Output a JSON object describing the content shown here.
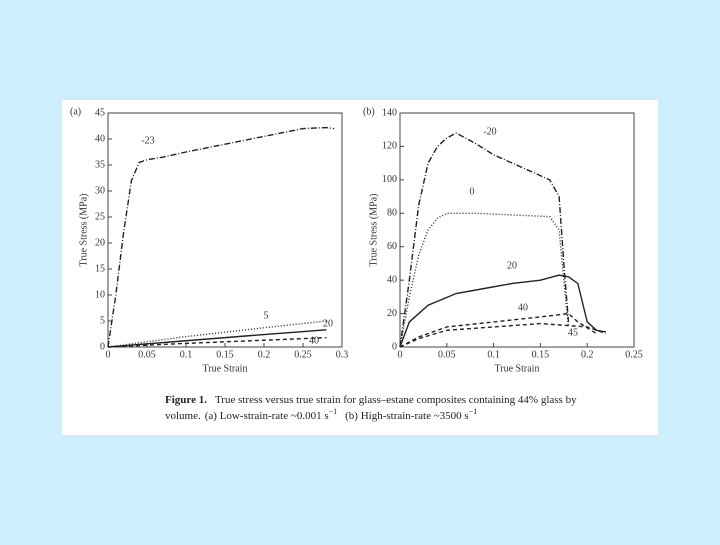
{
  "chart_data": [
    {
      "type": "line",
      "panel": "(a)",
      "xlabel": "True Strain",
      "ylabel": "True Stress (MPa)",
      "xlim": [
        0,
        0.3
      ],
      "xticks": [
        0,
        0.05,
        0.1,
        0.15,
        0.2,
        0.25,
        0.3
      ],
      "ylim": [
        0,
        45
      ],
      "yticks": [
        0,
        5,
        10,
        15,
        20,
        25,
        30,
        35,
        40,
        45
      ],
      "series": [
        {
          "name": "-23",
          "color": "#222222",
          "dash": "dashdot",
          "x": [
            0,
            0.01,
            0.02,
            0.03,
            0.04,
            0.05,
            0.07,
            0.1,
            0.15,
            0.2,
            0.25,
            0.28,
            0.29
          ],
          "values": [
            0,
            10,
            22,
            32,
            35.5,
            36,
            36.5,
            37.5,
            39,
            40.5,
            42,
            42.2,
            42
          ]
        },
        {
          "name": "5",
          "color": "#222222",
          "dash": "dotted",
          "x": [
            0,
            0.1,
            0.2,
            0.28
          ],
          "values": [
            0,
            2,
            3.7,
            5
          ]
        },
        {
          "name": "20",
          "color": "#222222",
          "dash": "solid",
          "x": [
            0,
            0.1,
            0.2,
            0.28
          ],
          "values": [
            0,
            1.2,
            2.4,
            3.3
          ]
        },
        {
          "name": "40",
          "color": "#222222",
          "dash": "dashed",
          "x": [
            0,
            0.1,
            0.2,
            0.28
          ],
          "values": [
            0,
            0.7,
            1.3,
            1.8
          ]
        }
      ]
    },
    {
      "type": "line",
      "panel": "(b)",
      "xlabel": "True Strain",
      "ylabel": "True Stress (MPa)",
      "xlim": [
        0,
        0.25
      ],
      "xticks": [
        0,
        0.05,
        0.1,
        0.15,
        0.2,
        0.25
      ],
      "ylim": [
        0,
        140
      ],
      "yticks": [
        0,
        20,
        40,
        60,
        80,
        100,
        120,
        140
      ],
      "series": [
        {
          "name": "-20",
          "color": "#222222",
          "dash": "dashdot",
          "x": [
            0,
            0.01,
            0.02,
            0.03,
            0.04,
            0.05,
            0.06,
            0.08,
            0.1,
            0.12,
            0.14,
            0.16,
            0.17,
            0.175,
            0.18
          ],
          "values": [
            0,
            40,
            85,
            110,
            120,
            125,
            128,
            122,
            115,
            110,
            105,
            100,
            90,
            50,
            15
          ]
        },
        {
          "name": "0",
          "color": "#222222",
          "dash": "dotted",
          "x": [
            0,
            0.01,
            0.02,
            0.03,
            0.04,
            0.05,
            0.08,
            0.12,
            0.16,
            0.17,
            0.175,
            0.18
          ],
          "values": [
            0,
            30,
            55,
            70,
            77,
            80,
            80,
            79,
            78,
            70,
            40,
            12
          ]
        },
        {
          "name": "20",
          "color": "#222222",
          "dash": "solid",
          "x": [
            0,
            0.01,
            0.03,
            0.06,
            0.09,
            0.12,
            0.15,
            0.17,
            0.18,
            0.19,
            0.2,
            0.21,
            0.22
          ],
          "values": [
            0,
            15,
            25,
            32,
            35,
            38,
            40,
            43,
            42,
            38,
            15,
            10,
            9
          ]
        },
        {
          "name": "40",
          "color": "#222222",
          "dash": "dashed",
          "x": [
            0,
            0.02,
            0.05,
            0.1,
            0.15,
            0.18,
            0.19,
            0.21
          ],
          "values": [
            0,
            6,
            12,
            15,
            18,
            20,
            15,
            8
          ]
        },
        {
          "name": "45",
          "color": "#222222",
          "dash": "dashed",
          "x": [
            0,
            0.02,
            0.05,
            0.1,
            0.15,
            0.2,
            0.22
          ],
          "values": [
            0,
            5,
            10,
            12,
            14,
            12,
            8
          ]
        }
      ]
    }
  ],
  "caption": {
    "label": "Figure 1.",
    "text": "True stress versus true strain for glass–estane composites containing 44% glass by",
    "text2": "volume.",
    "a": "(a) Low-strain-rate ~0.001 s",
    "a_exp": "−1",
    "b": "(b) High-strain-rate ~3500 s",
    "b_exp": "−1"
  }
}
